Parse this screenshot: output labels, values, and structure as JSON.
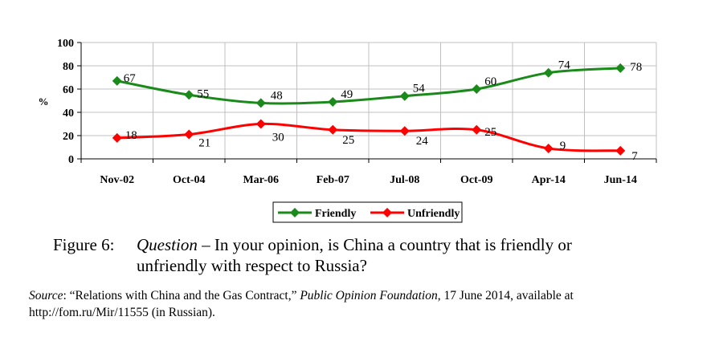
{
  "chart_data": {
    "type": "line",
    "categories": [
      "Nov-02",
      "Oct-04",
      "Mar-06",
      "Feb-07",
      "Jul-08",
      "Oct-09",
      "Apr-14",
      "Jun-14"
    ],
    "series": [
      {
        "name": "Friendly",
        "color": "#1a8a1a",
        "values": [
          67,
          55,
          48,
          49,
          54,
          60,
          74,
          78
        ]
      },
      {
        "name": "Unfriendly",
        "color": "#ff0000",
        "values": [
          18,
          21,
          30,
          25,
          24,
          25,
          9,
          7
        ]
      }
    ],
    "ylabel": "%",
    "ylim": [
      0,
      100
    ],
    "yticks": [
      0,
      20,
      40,
      60,
      80,
      100
    ],
    "grid": true,
    "legend": "bottom-center"
  },
  "caption": {
    "label": "Figure 6:",
    "question_word": "Question",
    "text_line1": " – In your opinion, is China a country that is friendly or",
    "text_line2": "unfriendly with respect to Russia?"
  },
  "source": {
    "label": "Source",
    "text1": ": “Relations with China and the Gas Contract,” ",
    "publisher": "Public Opinion Foundation",
    "text2": ", 17 June 2014, available at http://fom.ru/Mir/11555 (in Russian)."
  }
}
